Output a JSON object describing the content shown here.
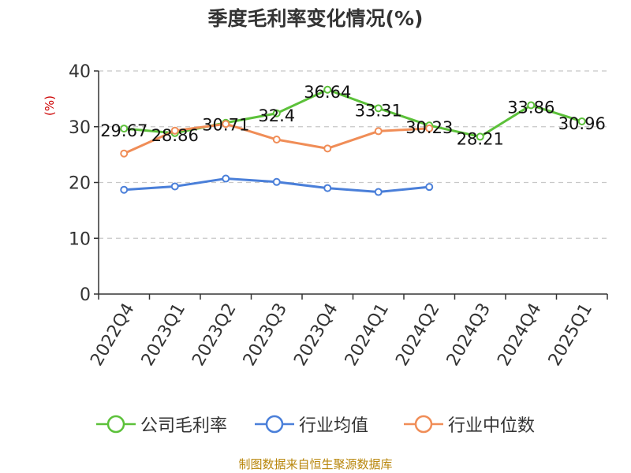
{
  "title": "季度毛利率变化情况(%)",
  "source": "制图数据来自恒生聚源数据库",
  "chart_data": {
    "type": "line",
    "title": "季度毛利率变化情况(%)",
    "ylabel": "(%)",
    "xlabel": "",
    "ylim": [
      0,
      40
    ],
    "yticks": [
      0,
      10,
      20,
      30,
      40
    ],
    "grid": true,
    "legend_position": "bottom",
    "categories": [
      "2022Q4",
      "2023Q1",
      "2023Q2",
      "2023Q3",
      "2023Q4",
      "2024Q1",
      "2024Q2",
      "2024Q3",
      "2024Q4",
      "2025Q1"
    ],
    "series": [
      {
        "name": "公司毛利率",
        "color": "#5cc13a",
        "labels": true,
        "values": [
          29.67,
          28.86,
          30.71,
          32.4,
          36.64,
          33.31,
          30.23,
          28.21,
          33.86,
          30.96
        ]
      },
      {
        "name": "行业均值",
        "color": "#4a7fd9",
        "labels": false,
        "values": [
          18.7,
          19.3,
          20.7,
          20.1,
          19.0,
          18.3,
          19.2,
          null,
          null,
          null
        ]
      },
      {
        "name": "行业中位数",
        "color": "#f08d57",
        "labels": false,
        "values": [
          25.2,
          29.3,
          30.5,
          27.7,
          26.1,
          29.2,
          29.7,
          null,
          null,
          null
        ]
      }
    ]
  }
}
